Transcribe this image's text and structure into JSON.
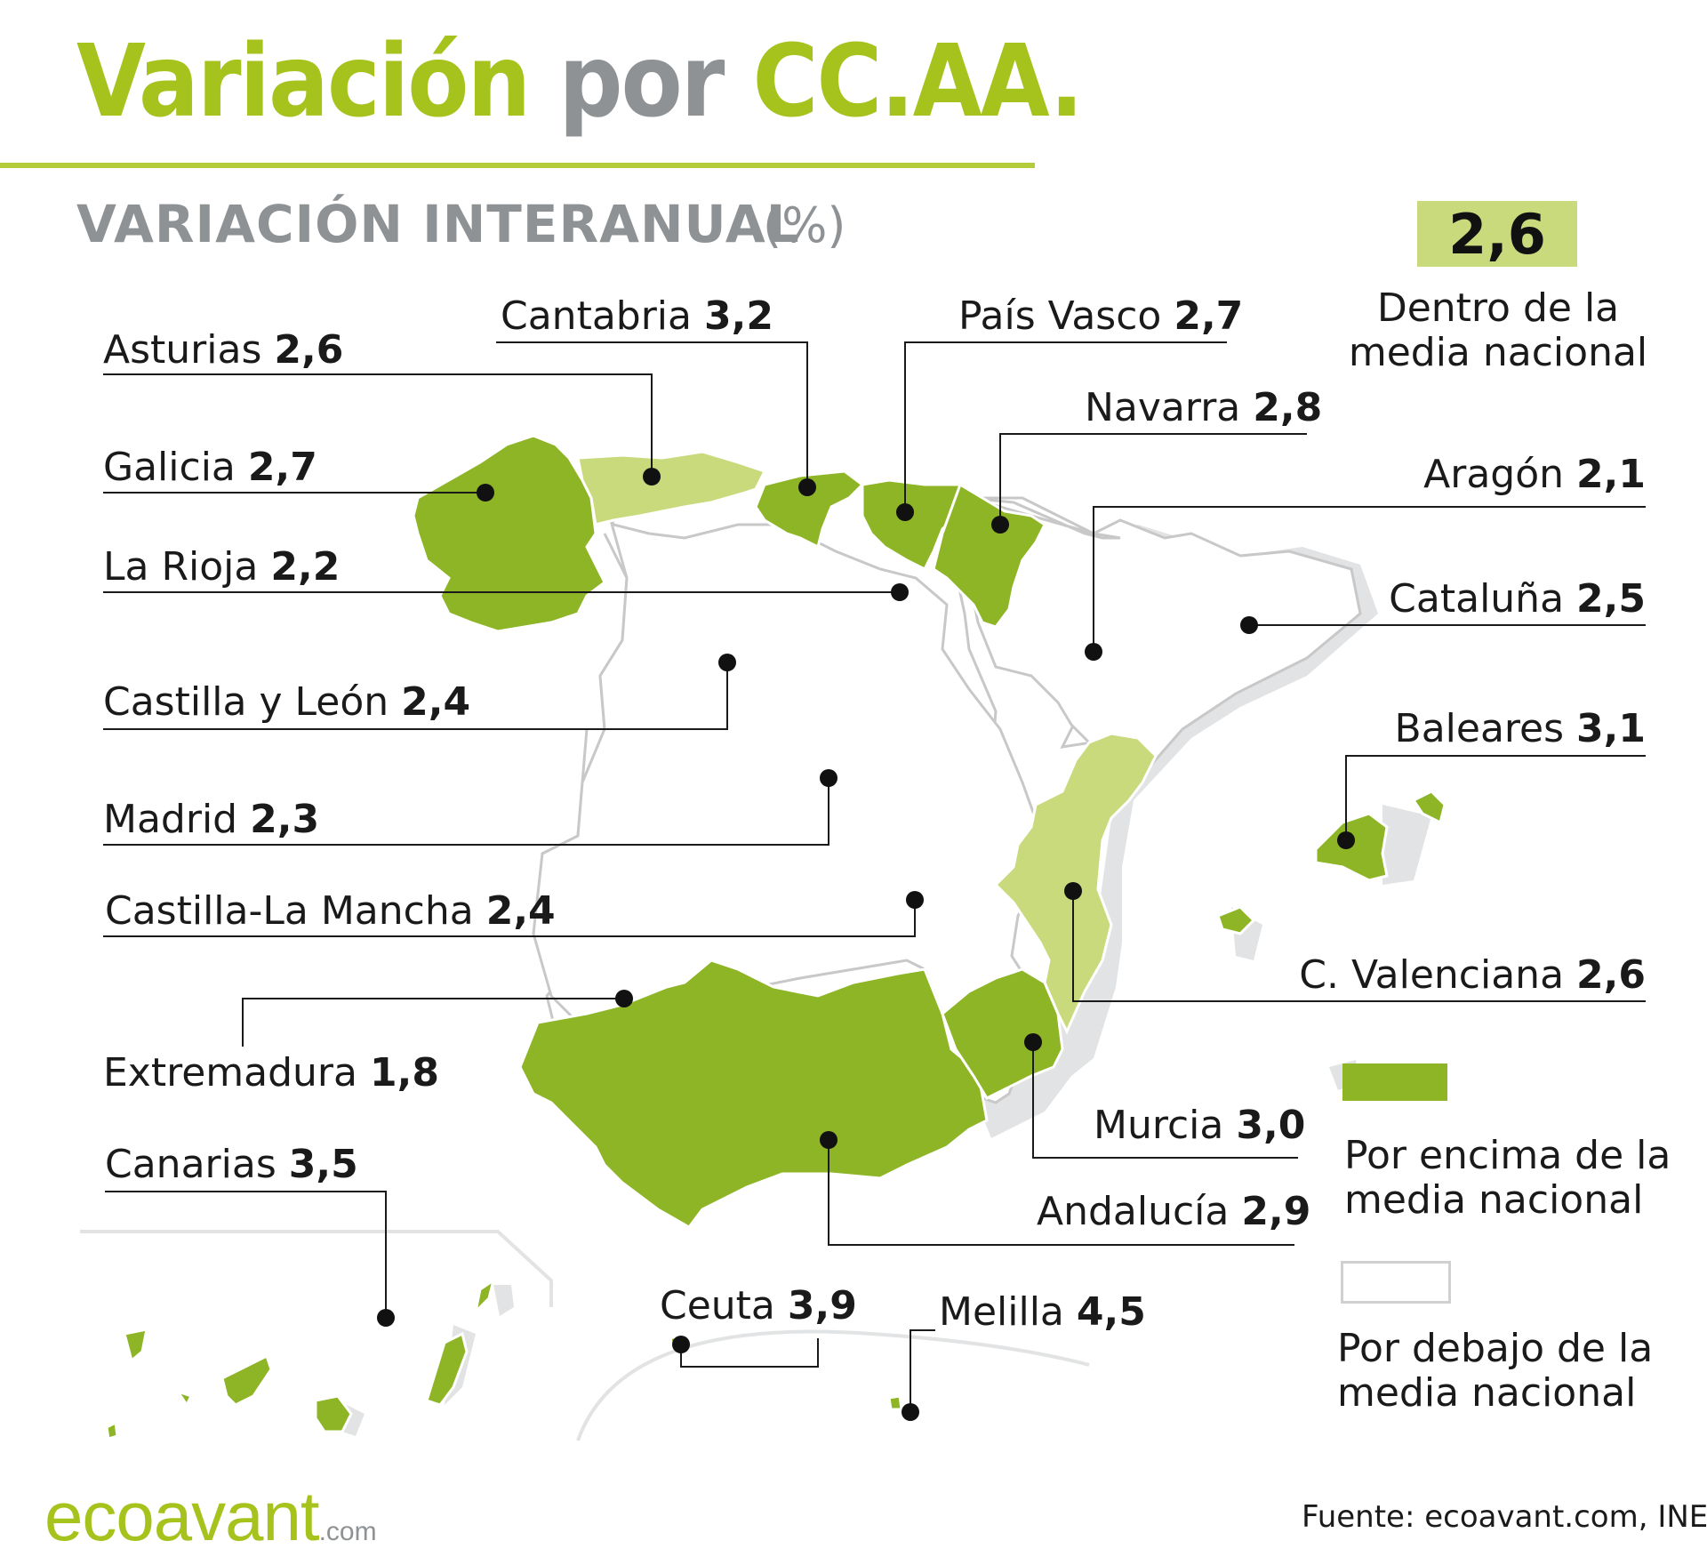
{
  "header": {
    "title_part1": "Variación",
    "title_part2": "por",
    "title_part3": "CC.AA.",
    "subtitle": "VARIACIÓN INTERANUAL",
    "unit": "(%)"
  },
  "national": {
    "value": "2,6",
    "label": "Dentro de la media nacional"
  },
  "colors": {
    "above": "#8db526",
    "within": "#c9da7d",
    "below": "#ffffff",
    "accent": "#a6c31d",
    "grey": "#8f9294"
  },
  "regions": [
    {
      "id": "asturias",
      "name": "Asturias",
      "value": "2,6",
      "status": "within"
    },
    {
      "id": "cantabria",
      "name": "Cantabria",
      "value": "3,2",
      "status": "above"
    },
    {
      "id": "pais-vasco",
      "name": "País Vasco",
      "value": "2,7",
      "status": "above"
    },
    {
      "id": "navarra",
      "name": "Navarra",
      "value": "2,8",
      "status": "above"
    },
    {
      "id": "galicia",
      "name": "Galicia",
      "value": "2,7",
      "status": "above"
    },
    {
      "id": "aragon",
      "name": "Aragón",
      "value": "2,1",
      "status": "below"
    },
    {
      "id": "la-rioja",
      "name": "La Rioja",
      "value": "2,2",
      "status": "below"
    },
    {
      "id": "cataluna",
      "name": "Cataluña",
      "value": "2,5",
      "status": "below"
    },
    {
      "id": "castilla-leon",
      "name": "Castilla y León",
      "value": "2,4",
      "status": "below"
    },
    {
      "id": "baleares",
      "name": "Baleares",
      "value": "3,1",
      "status": "above"
    },
    {
      "id": "madrid",
      "name": "Madrid",
      "value": "2,3",
      "status": "below"
    },
    {
      "id": "castilla-la-mancha",
      "name": "Castilla-La Mancha",
      "value": "2,4",
      "status": "below"
    },
    {
      "id": "c-valenciana",
      "name": "C. Valenciana",
      "value": "2,6",
      "status": "within"
    },
    {
      "id": "extremadura",
      "name": "Extremadura",
      "value": "1,8",
      "status": "below"
    },
    {
      "id": "murcia",
      "name": "Murcia",
      "value": "3,0",
      "status": "above"
    },
    {
      "id": "canarias",
      "name": "Canarias",
      "value": "3,5",
      "status": "above"
    },
    {
      "id": "andalucia",
      "name": "Andalucía",
      "value": "2,9",
      "status": "above"
    },
    {
      "id": "ceuta",
      "name": "Ceuta",
      "value": "3,9",
      "status": "above"
    },
    {
      "id": "melilla",
      "name": "Melilla",
      "value": "4,5",
      "status": "above"
    }
  ],
  "legend": {
    "above_label": "Por encima de la media nacional",
    "below_label": "Por debajo de la media nacional"
  },
  "footer": {
    "logo": "ecoavant",
    "logo_suffix": ".com",
    "source": "Fuente: ecoavant.com, INE"
  }
}
